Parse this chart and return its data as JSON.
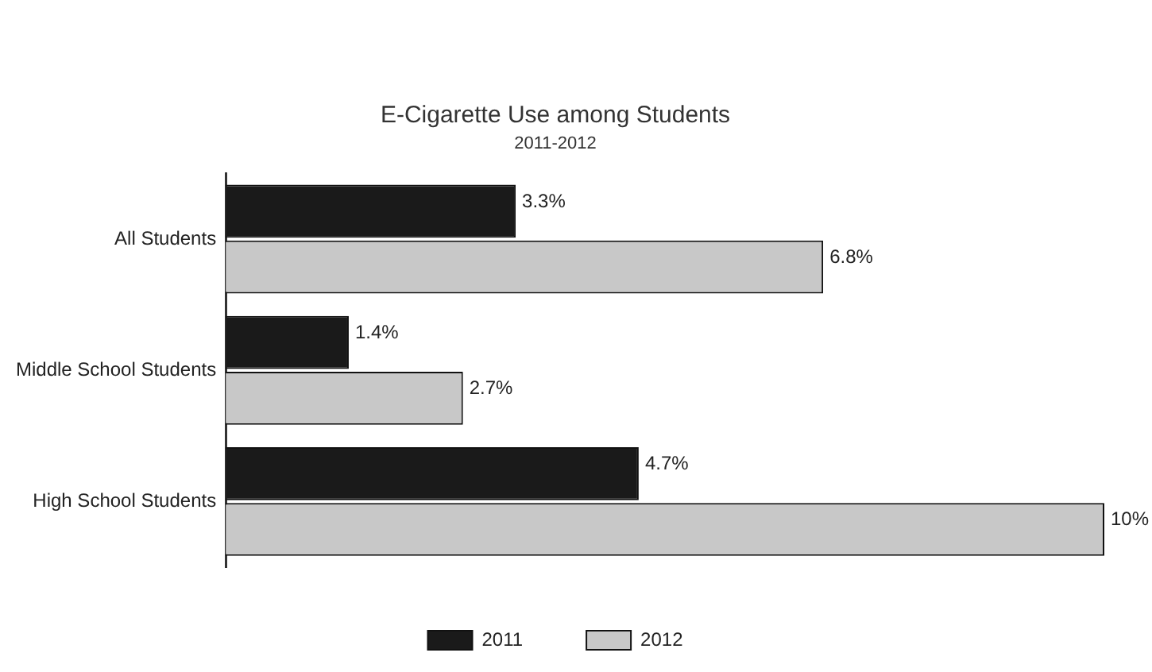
{
  "chart_data": {
    "type": "bar",
    "orientation": "horizontal",
    "title": "E-Cigarette Use among Students",
    "subtitle": "2011-2012",
    "categories": [
      "All Students",
      "Middle School Students",
      "High School Students"
    ],
    "series": [
      {
        "name": "2011",
        "color": "#1a1a1a",
        "values": [
          3.3,
          1.4,
          4.7
        ],
        "value_labels": [
          "3.3%",
          "1.4%",
          "4.7%"
        ]
      },
      {
        "name": "2012",
        "color": "#c8c8c8",
        "values": [
          6.8,
          2.7,
          10
        ],
        "value_labels": [
          "6.8%",
          "2.7%",
          "10%"
        ]
      }
    ],
    "xlim": [
      0,
      10
    ],
    "tick_labels": "y",
    "legend": "bottom"
  }
}
